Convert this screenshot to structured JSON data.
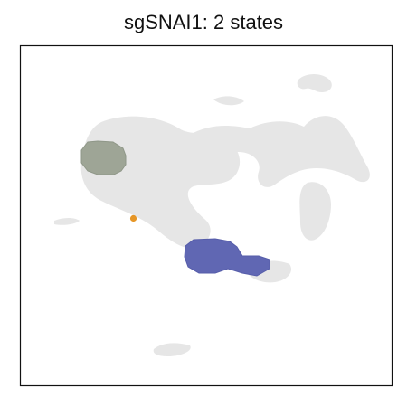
{
  "chart_data": {
    "type": "scatter",
    "title": "sgSNAI1: 2 states",
    "xlabel": "",
    "ylabel": "",
    "axes_ticks": "none",
    "background_color": "#e6e6e6",
    "series": [
      {
        "color": "#9ea596",
        "centroid": [
          -9.2,
          6.5
        ],
        "extent": [
          1.8,
          1.6
        ]
      },
      {
        "color": "#6067b3",
        "centroid": [
          2.7,
          -4.2
        ],
        "extent": [
          3.0,
          1.0
        ]
      },
      {
        "color": "#e69627",
        "point": [
          -5.5,
          0.5
        ]
      }
    ]
  }
}
